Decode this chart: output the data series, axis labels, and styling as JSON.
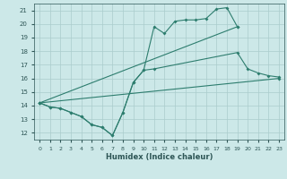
{
  "background_color": "#cce8e8",
  "grid_color": "#aacccc",
  "line_color": "#2d7d6e",
  "xlabel": "Humidex (Indice chaleur)",
  "xlim": [
    -0.5,
    23.5
  ],
  "ylim": [
    11.5,
    21.5
  ],
  "yticks": [
    12,
    13,
    14,
    15,
    16,
    17,
    18,
    19,
    20,
    21
  ],
  "xticks": [
    0,
    1,
    2,
    3,
    4,
    5,
    6,
    7,
    8,
    9,
    10,
    11,
    12,
    13,
    14,
    15,
    16,
    17,
    18,
    19,
    20,
    21,
    22,
    23
  ],
  "line1_x": [
    0,
    1,
    2,
    3,
    4,
    5,
    6,
    7,
    8,
    9,
    10,
    11,
    12,
    13,
    14,
    15,
    16,
    17,
    18,
    19
  ],
  "line1_y": [
    14.2,
    13.9,
    13.8,
    13.5,
    13.2,
    12.6,
    12.4,
    11.8,
    13.5,
    15.7,
    16.6,
    19.8,
    19.3,
    20.2,
    20.3,
    20.3,
    20.4,
    21.1,
    21.2,
    19.8
  ],
  "line2_x": [
    0,
    1,
    2,
    3,
    4,
    5,
    6,
    7,
    8,
    9,
    10,
    11,
    19,
    20,
    21,
    22,
    23
  ],
  "line2_y": [
    14.2,
    13.9,
    13.8,
    13.5,
    13.2,
    12.6,
    12.4,
    11.8,
    13.5,
    15.7,
    16.6,
    16.7,
    17.9,
    16.7,
    16.4,
    16.2,
    16.1
  ],
  "line3_x": [
    0,
    23
  ],
  "line3_y": [
    14.2,
    16.0
  ],
  "line4_x": [
    0,
    19
  ],
  "line4_y": [
    14.2,
    19.8
  ]
}
